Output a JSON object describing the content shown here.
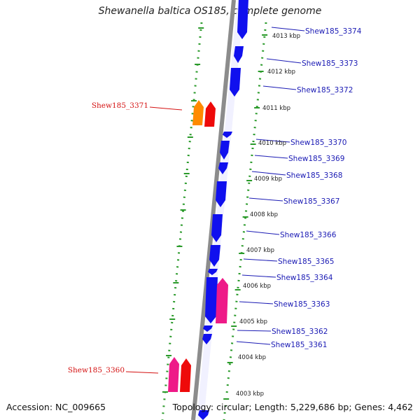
{
  "title": "Shewanella baltica OS185, complete genome",
  "accession": "Accession: NC_009665",
  "summary": "Topology: circular; Length: 5,229,686 bp; Genes: 4,462",
  "colors": {
    "backbone": "#8c8c8c",
    "forward_gene": "#1010ee",
    "reverse_gene_red": "#ee0a0a",
    "reverse_gene_orange": "#ff8a00",
    "reverse_gene_pink": "#ee1a88",
    "label_forward": "#1a1ab4",
    "label_reverse": "#d41010",
    "scale_dots": "#2a9a2a"
  },
  "scale_labels": [
    "4013 kbp",
    "4012 kbp",
    "4011 kbp",
    "4010 kbp",
    "4009 kbp",
    "4008 kbp",
    "4007 kbp",
    "4006 kbp",
    "4005 kbp",
    "4004 kbp",
    "4003 kbp"
  ],
  "forward_labels": [
    "Shew185_3374",
    "Shew185_3373",
    "Shew185_3372",
    "Shew185_3370",
    "Shew185_3369",
    "Shew185_3368",
    "Shew185_3367",
    "Shew185_3366",
    "Shew185_3365",
    "Shew185_3364",
    "Shew185_3363",
    "Shew185_3362",
    "Shew185_3361"
  ],
  "reverse_labels": [
    "Shew185_3371",
    "Shew185_3360"
  ]
}
